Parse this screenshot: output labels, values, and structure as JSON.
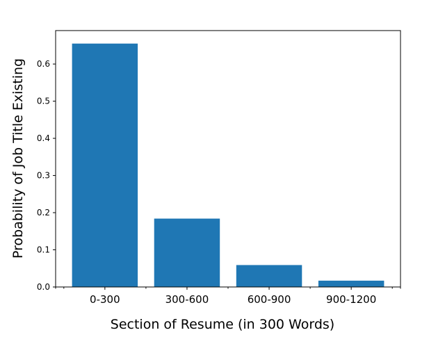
{
  "chart_data": {
    "type": "bar",
    "title": "",
    "xlabel": "Section of Resume (in 300 Words)",
    "ylabel": "Probability of Job Title Existing",
    "categories": [
      "0-300",
      "300-600",
      "600-900",
      "900-1200"
    ],
    "values": [
      0.655,
      0.184,
      0.059,
      0.017
    ],
    "ylim": [
      0,
      0.69
    ],
    "yticks": [
      0.0,
      0.1,
      0.2,
      0.3,
      0.4,
      0.5,
      0.6
    ],
    "ytick_labels": [
      "0.0",
      "0.1",
      "0.2",
      "0.3",
      "0.4",
      "0.5",
      "0.6"
    ],
    "bar_color": "#1f77b4",
    "grid": false,
    "legend": "none"
  }
}
